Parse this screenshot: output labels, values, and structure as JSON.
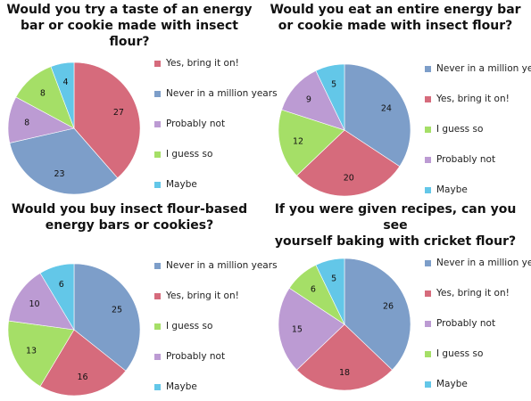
{
  "colors": {
    "yes": "#d66b7c",
    "never": "#7d9ec9",
    "probably_not": "#bc9bd3",
    "guess": "#a5df67",
    "maybe": "#63c7e8"
  },
  "chart_data": [
    {
      "type": "pie",
      "title": "Would you try a taste of an energy bar or cookie made with insect flour?",
      "title_lines": [
        "Would you try a taste of an energy",
        "bar or cookie made with insect flour?"
      ],
      "legend_position": "right",
      "slices": [
        {
          "label": "Yes, bring it on!",
          "value": 27,
          "color_key": "yes"
        },
        {
          "label": "Never in a million years",
          "value": 23,
          "color_key": "never"
        },
        {
          "label": "Probably not",
          "value": 8,
          "color_key": "probably_not"
        },
        {
          "label": "I guess so",
          "value": 8,
          "color_key": "guess"
        },
        {
          "label": "Maybe",
          "value": 4,
          "color_key": "maybe"
        }
      ]
    },
    {
      "type": "pie",
      "title": "Would you eat an entire energy bar or cookie made with insect flour?",
      "title_lines": [
        "Would you eat an entire energy bar",
        "or cookie made with insect flour?"
      ],
      "legend_position": "right",
      "slices": [
        {
          "label": "Never in a million years",
          "value": 24,
          "color_key": "never"
        },
        {
          "label": "Yes, bring it on!",
          "value": 20,
          "color_key": "yes"
        },
        {
          "label": "I guess so",
          "value": 12,
          "color_key": "guess"
        },
        {
          "label": "Probably not",
          "value": 9,
          "color_key": "probably_not"
        },
        {
          "label": "Maybe",
          "value": 5,
          "color_key": "maybe"
        }
      ]
    },
    {
      "type": "pie",
      "title": "Would you buy insect flour-based energy bars or cookies?",
      "title_lines": [
        "Would you buy insect flour-based",
        "energy bars or cookies?"
      ],
      "legend_position": "right",
      "slices": [
        {
          "label": "Never in a million years",
          "value": 25,
          "color_key": "never"
        },
        {
          "label": "Yes, bring it on!",
          "value": 16,
          "color_key": "yes"
        },
        {
          "label": "I guess so",
          "value": 13,
          "color_key": "guess"
        },
        {
          "label": "Probably not",
          "value": 10,
          "color_key": "probably_not"
        },
        {
          "label": "Maybe",
          "value": 6,
          "color_key": "maybe"
        }
      ]
    },
    {
      "type": "pie",
      "title": "If you were given recipes, can you see yourself baking with cricket flour?",
      "title_lines": [
        "If you were given recipes, can you see",
        "yourself baking with cricket flour?"
      ],
      "legend_position": "right",
      "slices": [
        {
          "label": "Never in a million years",
          "value": 26,
          "color_key": "never"
        },
        {
          "label": "Yes, bring it on!",
          "value": 18,
          "color_key": "yes"
        },
        {
          "label": "Probably not",
          "value": 15,
          "color_key": "probably_not"
        },
        {
          "label": "I guess so",
          "value": 6,
          "color_key": "guess"
        },
        {
          "label": "Maybe",
          "value": 5,
          "color_key": "maybe"
        }
      ]
    }
  ]
}
